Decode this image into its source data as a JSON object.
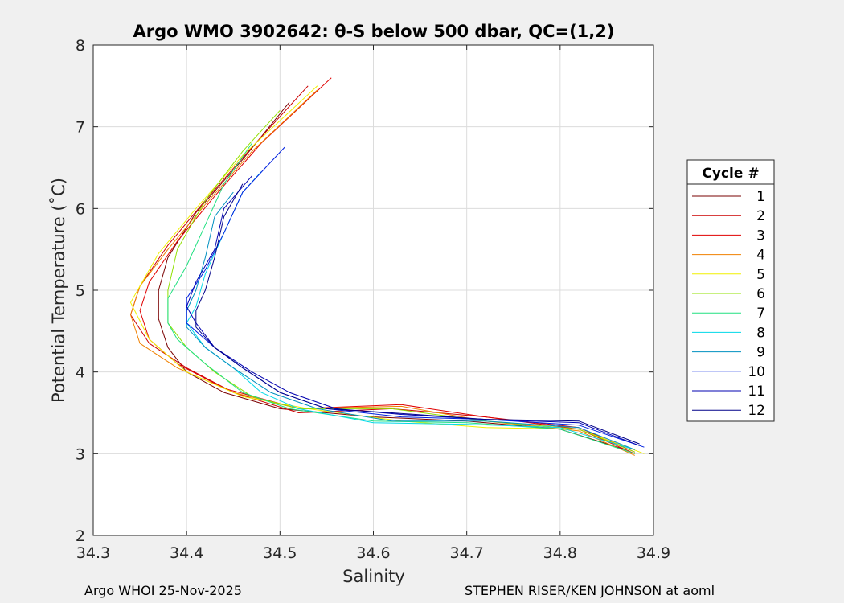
{
  "chart_data": {
    "type": "line",
    "title": "Argo WMO 3902642: θ-S below 500 dbar,  QC=(1,2)",
    "xlabel": "Salinity",
    "ylabel": "Potential Temperature (˚C)",
    "xlim": [
      34.3,
      34.9
    ],
    "ylim": [
      2,
      8
    ],
    "xticks": [
      "34.3",
      "34.4",
      "34.5",
      "34.6",
      "34.7",
      "34.8",
      "34.9"
    ],
    "yticks": [
      "2",
      "3",
      "4",
      "5",
      "6",
      "7",
      "8"
    ],
    "grid": true,
    "legend_title": "Cycle #",
    "legend_position": "right",
    "series": [
      {
        "name": "1",
        "color": "#7a0000",
        "s": [
          34.51,
          34.46,
          34.41,
          34.38,
          34.37,
          34.37,
          34.38,
          34.4,
          34.44,
          34.5,
          34.6,
          34.7,
          34.8,
          34.87
        ],
        "t": [
          7.3,
          6.6,
          5.95,
          5.4,
          5.0,
          4.65,
          4.3,
          4.0,
          3.75,
          3.55,
          3.45,
          3.4,
          3.3,
          3.05
        ]
      },
      {
        "name": "2",
        "color": "#cc0000",
        "s": [
          34.53,
          34.47,
          34.42,
          34.38,
          34.35,
          34.34,
          34.36,
          34.4,
          34.45,
          34.52,
          34.62,
          34.72,
          34.82,
          34.88
        ],
        "t": [
          7.5,
          6.75,
          6.1,
          5.55,
          5.05,
          4.7,
          4.35,
          4.05,
          3.75,
          3.5,
          3.55,
          3.45,
          3.32,
          3.02
        ]
      },
      {
        "name": "3",
        "color": "#e00000",
        "s": [
          34.555,
          34.48,
          34.43,
          34.39,
          34.36,
          34.35,
          34.36,
          34.39,
          34.44,
          34.52,
          34.63,
          34.72,
          34.82,
          34.88
        ],
        "t": [
          7.6,
          6.8,
          6.15,
          5.6,
          5.1,
          4.75,
          4.4,
          4.1,
          3.8,
          3.55,
          3.6,
          3.45,
          3.3,
          3.0
        ]
      },
      {
        "name": "4",
        "color": "#f08000",
        "s": [
          34.54,
          34.47,
          34.42,
          34.38,
          34.35,
          34.34,
          34.35,
          34.39,
          34.45,
          34.52,
          34.63,
          34.72,
          34.82,
          34.88
        ],
        "t": [
          7.45,
          6.7,
          6.05,
          5.5,
          5.05,
          4.7,
          4.35,
          4.05,
          3.75,
          3.55,
          3.58,
          3.4,
          3.28,
          2.98
        ]
      },
      {
        "name": "5",
        "color": "#f0f000",
        "s": [
          34.54,
          34.46,
          34.41,
          34.37,
          34.35,
          34.34,
          34.36,
          34.4,
          34.46,
          34.53,
          34.63,
          34.72,
          34.82,
          34.89
        ],
        "t": [
          7.5,
          6.65,
          6.0,
          5.45,
          5.05,
          4.85,
          4.4,
          4.0,
          3.7,
          3.55,
          3.4,
          3.32,
          3.3,
          3.0
        ]
      },
      {
        "name": "6",
        "color": "#90e000",
        "s": [
          34.5,
          34.46,
          34.42,
          34.39,
          34.38,
          34.38,
          34.4,
          34.43,
          34.47,
          34.52,
          34.62,
          34.72,
          34.82,
          34.88
        ],
        "t": [
          7.2,
          6.7,
          6.1,
          5.5,
          5.0,
          4.6,
          4.3,
          4.0,
          3.7,
          3.55,
          3.55,
          3.4,
          3.3,
          3.02
        ]
      },
      {
        "name": "7",
        "color": "#20e080",
        "s": [
          34.47,
          34.44,
          34.42,
          34.4,
          34.38,
          34.38,
          34.39,
          34.42,
          34.46,
          34.51,
          34.6,
          34.7,
          34.8,
          34.88
        ],
        "t": [
          6.8,
          6.3,
          5.8,
          5.3,
          4.9,
          4.6,
          4.4,
          4.1,
          3.75,
          3.55,
          3.4,
          3.38,
          3.3,
          3.0
        ]
      },
      {
        "name": "8",
        "color": "#00d8e8",
        "s": [
          34.48,
          34.46,
          34.44,
          34.42,
          34.41,
          34.4,
          34.42,
          34.45,
          34.48,
          34.52,
          34.6,
          34.7,
          34.8,
          34.88
        ],
        "t": [
          6.45,
          6.2,
          5.7,
          5.2,
          4.8,
          4.6,
          4.3,
          4.05,
          3.75,
          3.55,
          3.38,
          3.36,
          3.32,
          3.05
        ]
      },
      {
        "name": "9",
        "color": "#0090c0",
        "s": [
          34.45,
          34.43,
          34.42,
          34.41,
          34.4,
          34.4,
          34.42,
          34.45,
          34.49,
          34.54,
          34.62,
          34.72,
          34.82,
          34.88
        ],
        "t": [
          6.2,
          5.9,
          5.4,
          5.0,
          4.75,
          4.55,
          4.3,
          4.05,
          3.75,
          3.55,
          3.4,
          3.4,
          3.32,
          3.05
        ]
      },
      {
        "name": "10",
        "color": "#0020e0",
        "s": [
          34.505,
          34.46,
          34.44,
          34.42,
          34.4,
          34.4,
          34.43,
          34.46,
          34.5,
          34.55,
          34.63,
          34.72,
          34.82,
          34.89
        ],
        "t": [
          6.75,
          6.2,
          5.7,
          5.25,
          4.9,
          4.6,
          4.3,
          4.05,
          3.75,
          3.55,
          3.45,
          3.42,
          3.35,
          3.08
        ]
      },
      {
        "name": "11",
        "color": "#0000b0",
        "s": [
          34.47,
          34.44,
          34.43,
          34.41,
          34.4,
          34.41,
          34.43,
          34.47,
          34.51,
          34.56,
          34.63,
          34.72,
          34.82,
          34.885
        ],
        "t": [
          6.4,
          6.0,
          5.5,
          5.1,
          4.8,
          4.6,
          4.3,
          4.0,
          3.75,
          3.55,
          3.48,
          3.42,
          3.38,
          3.1
        ]
      },
      {
        "name": "12",
        "color": "#000088",
        "s": [
          34.46,
          34.44,
          34.43,
          34.42,
          34.41,
          34.41,
          34.43,
          34.46,
          34.5,
          34.55,
          34.62,
          34.72,
          34.82,
          34.885
        ],
        "t": [
          6.3,
          5.9,
          5.4,
          5.0,
          4.75,
          4.55,
          4.3,
          4.05,
          3.75,
          3.55,
          3.5,
          3.42,
          3.4,
          3.12
        ]
      }
    ]
  },
  "footer": {
    "left": "Argo WHOI 25-Nov-2025",
    "right": "STEPHEN RISER/KEN JOHNSON at aoml"
  }
}
